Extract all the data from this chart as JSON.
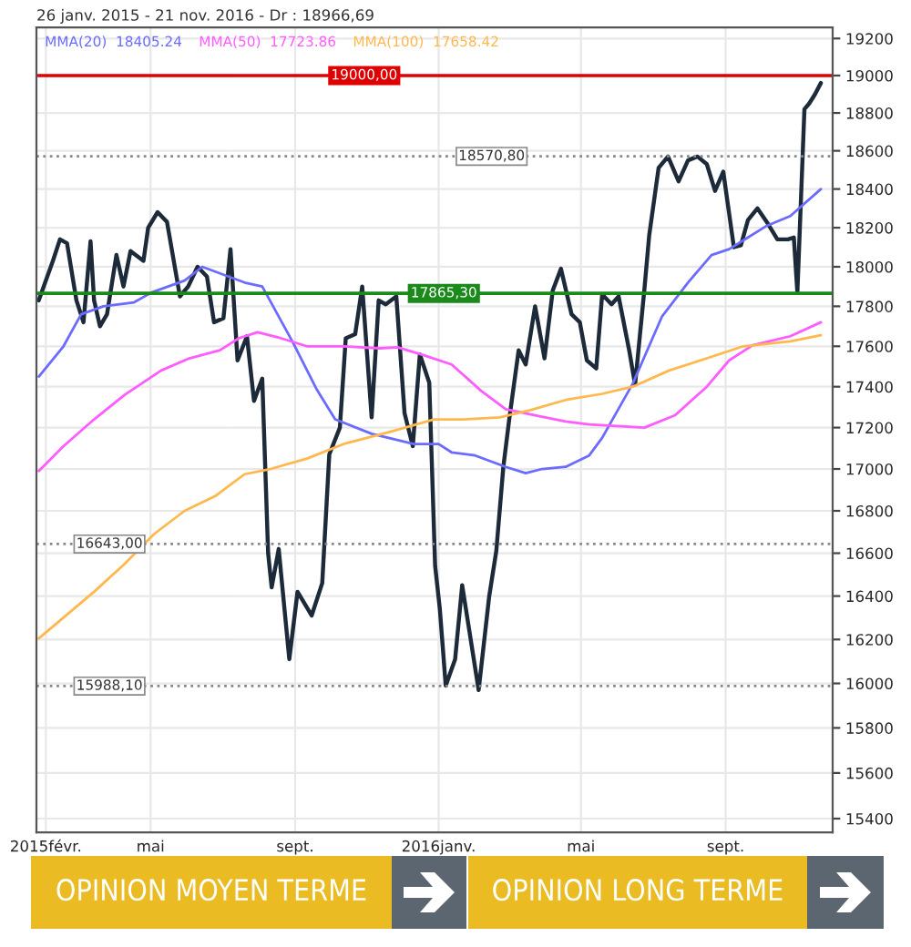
{
  "chart_data": {
    "type": "line",
    "title": "26 janv. 2015 - 21 nov. 2016 - Dr : 18966,69",
    "log": "y",
    "xlim": [
      "2015-01-24",
      "2016-12-01"
    ],
    "ylim": [
      15340,
      19260
    ],
    "xticks": [
      {
        "value": "2015-02-01",
        "label": "2015févr."
      },
      {
        "value": "2015-05-01",
        "label": "mai"
      },
      {
        "value": "2015-09-01",
        "label": "sept."
      },
      {
        "value": "2016-01-01",
        "label": "2016janv."
      },
      {
        "value": "2016-05-01",
        "label": "mai"
      },
      {
        "value": "2016-09-01",
        "label": "sept."
      }
    ],
    "yticks": [
      15400,
      15600,
      15800,
      16000,
      16200,
      16400,
      16600,
      16800,
      17000,
      17200,
      17400,
      17600,
      17800,
      18000,
      18200,
      18400,
      18600,
      18800,
      19000,
      19200
    ],
    "grid": true,
    "legend": "top left",
    "series": [
      {
        "color": "#1c2a3a",
        "x": [
          "2015-01-26",
          "2015-02-07",
          "2015-02-13",
          "2015-02-19",
          "2015-02-27",
          "2015-03-05",
          "2015-03-11",
          "2015-03-14",
          "2015-03-19",
          "2015-03-25",
          "2015-04-02",
          "2015-04-08",
          "2015-04-14",
          "2015-04-25",
          "2015-04-29",
          "2015-05-07",
          "2015-05-15",
          "2015-05-26",
          "2015-06-02",
          "2015-06-10",
          "2015-06-18",
          "2015-06-24",
          "2015-07-02",
          "2015-07-08",
          "2015-07-14",
          "2015-07-22",
          "2015-07-28",
          "2015-08-04",
          "2015-08-09",
          "2015-08-12",
          "2015-08-18",
          "2015-08-27",
          "2015-09-03",
          "2015-09-15",
          "2015-09-24",
          "2015-09-30",
          "2015-10-09",
          "2015-10-14",
          "2015-10-22",
          "2015-10-28",
          "2015-11-05",
          "2015-11-11",
          "2015-11-17",
          "2015-11-26",
          "2015-12-03",
          "2015-12-10",
          "2015-12-16",
          "2015-12-24",
          "2015-12-29",
          "2016-01-02",
          "2016-01-07",
          "2016-01-15",
          "2016-01-21",
          "2016-02-04",
          "2016-02-13",
          "2016-02-19",
          "2016-02-25",
          "2016-03-01",
          "2016-03-09",
          "2016-03-15",
          "2016-03-23",
          "2016-03-31",
          "2016-04-07",
          "2016-04-14",
          "2016-04-23",
          "2016-04-30",
          "2016-05-06",
          "2016-05-14",
          "2016-05-19",
          "2016-05-27",
          "2016-06-02",
          "2016-06-11",
          "2016-06-16",
          "2016-06-24",
          "2016-06-28",
          "2016-07-06",
          "2016-07-14",
          "2016-07-23",
          "2016-07-31",
          "2016-08-08",
          "2016-08-16",
          "2016-08-23",
          "2016-08-30",
          "2016-09-08",
          "2016-09-14",
          "2016-09-20",
          "2016-09-28",
          "2016-10-07",
          "2016-10-15",
          "2016-10-24",
          "2016-10-29",
          "2016-11-01",
          "2016-11-07",
          "2016-11-11",
          "2016-11-16",
          "2016-11-21"
        ],
        "values": [
          17830,
          18030,
          18140,
          18120,
          17830,
          17720,
          18130,
          17830,
          17700,
          17760,
          18060,
          17900,
          18080,
          18030,
          18200,
          18280,
          18230,
          17850,
          17900,
          18000,
          17950,
          17720,
          17740,
          18090,
          17530,
          17650,
          17330,
          17440,
          16600,
          16440,
          16620,
          16110,
          16420,
          16310,
          16460,
          17070,
          17200,
          17640,
          17660,
          17900,
          17250,
          17830,
          17810,
          17850,
          17270,
          17110,
          17560,
          17420,
          16540,
          16340,
          15990,
          16110,
          16450,
          15970,
          16400,
          16610,
          17010,
          17240,
          17580,
          17510,
          17800,
          17540,
          17880,
          17990,
          17760,
          17720,
          17530,
          17490,
          17860,
          17810,
          17850,
          17580,
          17410,
          17890,
          18160,
          18510,
          18570,
          18440,
          18550,
          18570,
          18530,
          18390,
          18490,
          18100,
          18110,
          18240,
          18300,
          18220,
          18140,
          18140,
          18150,
          17870,
          18820,
          18850,
          18900,
          18960
        ]
      },
      {
        "name": "MMA(20)  18405.24",
        "color": "#6b6bff",
        "x": [
          "2015-01-26",
          "2015-02-16",
          "2015-03-03",
          "2015-03-22",
          "2015-04-17",
          "2015-05-02",
          "2015-05-30",
          "2015-06-14",
          "2015-07-20",
          "2015-08-04",
          "2015-08-30",
          "2015-09-19",
          "2015-10-05",
          "2015-11-05",
          "2015-12-11",
          "2016-01-01",
          "2016-01-12",
          "2016-02-01",
          "2016-02-27",
          "2016-03-15",
          "2016-03-29",
          "2016-04-18",
          "2016-05-08",
          "2016-05-19",
          "2016-06-14",
          "2016-07-09",
          "2016-07-31",
          "2016-08-20",
          "2016-09-04",
          "2016-09-20",
          "2016-10-06",
          "2016-10-26",
          "2016-11-21"
        ],
        "values": [
          17450,
          17600,
          17760,
          17800,
          17820,
          17870,
          17930,
          18000,
          17920,
          17900,
          17620,
          17390,
          17240,
          17170,
          17120,
          17120,
          17080,
          17065,
          17010,
          16980,
          17000,
          17010,
          17065,
          17150,
          17415,
          17750,
          17920,
          18060,
          18090,
          18150,
          18210,
          18260,
          18400
        ]
      },
      {
        "name": "MMA(50)  17723.86",
        "color": "#ff5cff",
        "x": [
          "2015-01-26",
          "2015-02-16",
          "2015-03-14",
          "2015-04-09",
          "2015-05-10",
          "2015-06-03",
          "2015-06-29",
          "2015-07-15",
          "2015-07-31",
          "2015-08-20",
          "2015-09-11",
          "2015-10-12",
          "2015-11-12",
          "2015-11-27",
          "2015-12-17",
          "2016-01-12",
          "2016-02-06",
          "2016-02-27",
          "2016-03-23",
          "2016-04-18",
          "2016-05-08",
          "2016-06-24",
          "2016-07-20",
          "2016-08-16",
          "2016-09-04",
          "2016-09-24",
          "2016-10-26",
          "2016-11-21"
        ],
        "values": [
          16990,
          17110,
          17240,
          17360,
          17480,
          17540,
          17580,
          17640,
          17670,
          17640,
          17600,
          17600,
          17590,
          17595,
          17560,
          17510,
          17380,
          17290,
          17260,
          17230,
          17215,
          17200,
          17260,
          17400,
          17530,
          17605,
          17650,
          17720
        ]
      },
      {
        "name": "MMA(100)  17658.42",
        "color": "#ffb84d",
        "x": [
          "2015-01-26",
          "2015-03-14",
          "2015-04-09",
          "2015-05-04",
          "2015-05-30",
          "2015-06-25",
          "2015-07-20",
          "2015-08-11",
          "2015-09-11",
          "2015-10-12",
          "2015-11-21",
          "2015-12-28",
          "2016-01-22",
          "2016-02-22",
          "2016-03-19",
          "2016-04-18",
          "2016-05-19",
          "2016-06-14",
          "2016-07-15",
          "2016-08-16",
          "2016-09-16",
          "2016-10-26",
          "2016-11-21"
        ],
        "values": [
          16205,
          16420,
          16550,
          16690,
          16800,
          16870,
          16975,
          17000,
          17050,
          17120,
          17180,
          17240,
          17240,
          17250,
          17285,
          17335,
          17365,
          17400,
          17480,
          17540,
          17600,
          17625,
          17655
        ]
      }
    ],
    "ref_lines": [
      {
        "axis": "y",
        "value": 19000,
        "label": "19000,00",
        "color": "#e00000",
        "line_style": "solid"
      },
      {
        "axis": "y",
        "value": 18570.8,
        "label": "18570,80",
        "color": "#888888",
        "line_style": "dotted"
      },
      {
        "axis": "y",
        "value": 17865.3,
        "label": "17865,30",
        "color": "#1a8a1a",
        "line_style": "solid"
      },
      {
        "axis": "y",
        "value": 16643,
        "label": "16643,00",
        "color": "#888888",
        "line_style": "dotted"
      },
      {
        "axis": "y",
        "value": 15988.1,
        "label": "15988,10",
        "color": "#888888",
        "line_style": "dotted"
      }
    ],
    "annotations": [
      "OPINION MOYEN TERME",
      "OPINION LONG TERME"
    ]
  }
}
